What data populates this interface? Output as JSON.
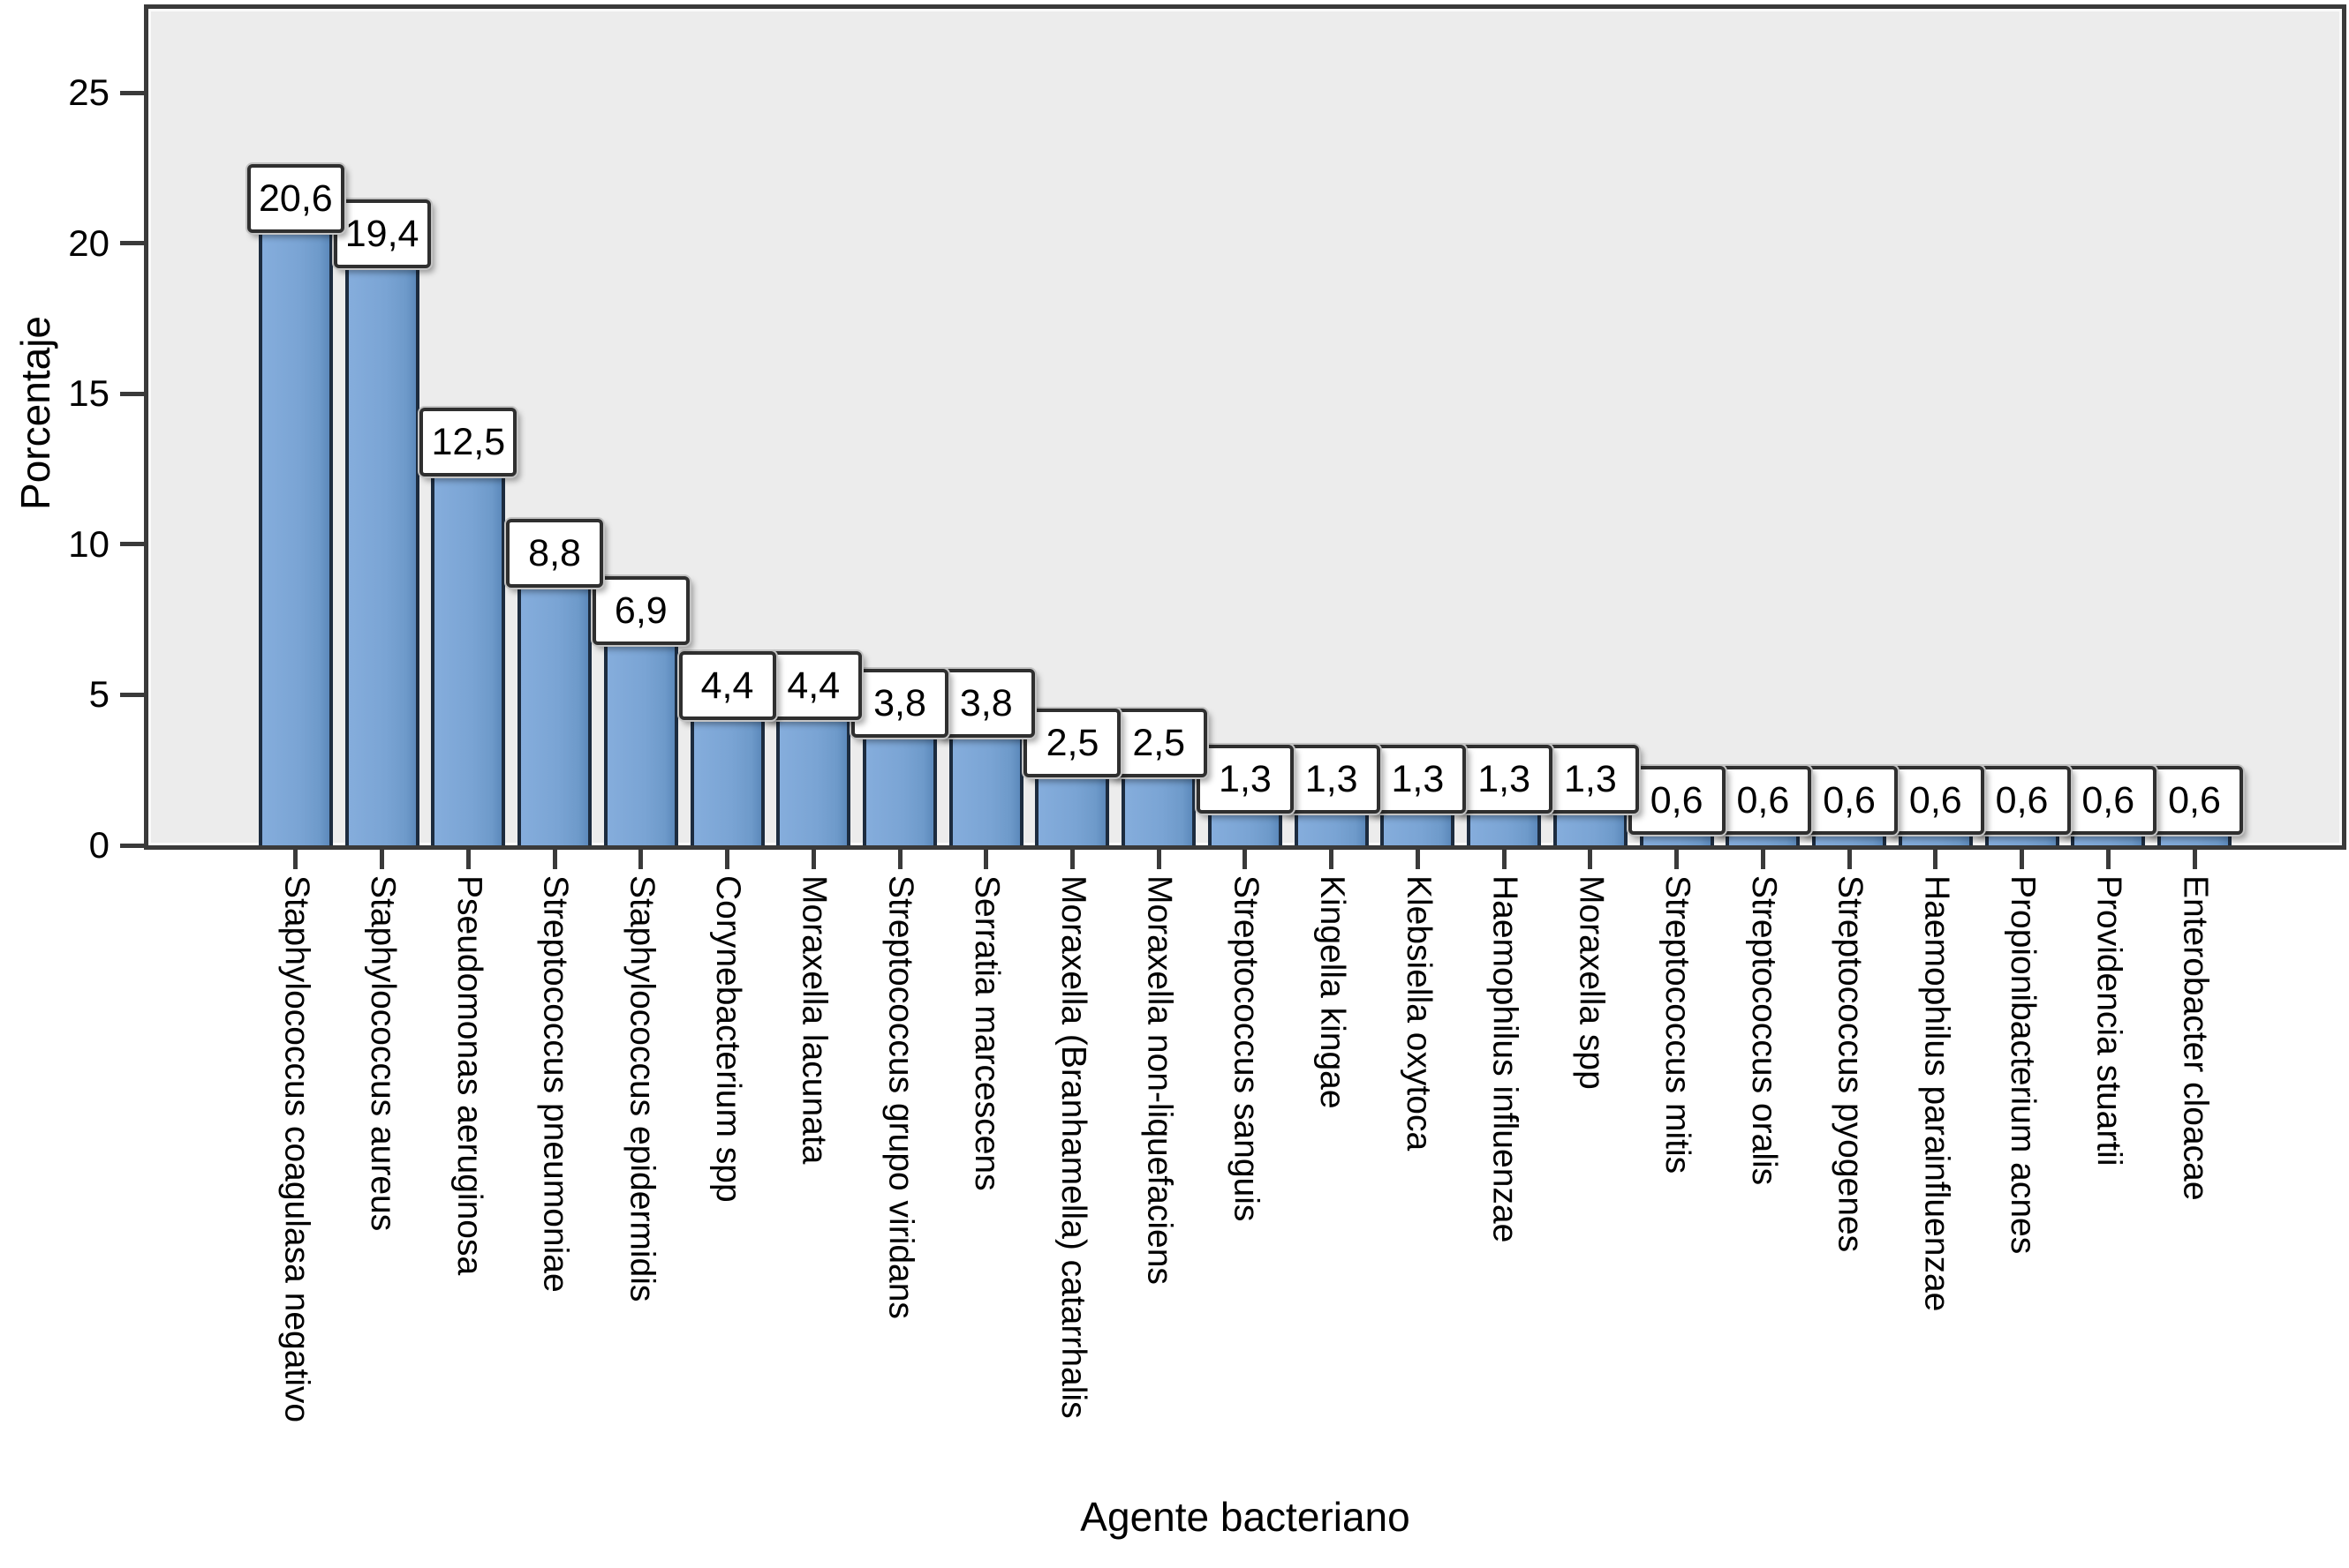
{
  "chart_data": {
    "type": "bar",
    "title": "",
    "xlabel": "Agente bacteriano",
    "ylabel": "Porcentaje",
    "categories": [
      "Staphylococcus coagulasa negativo",
      "Staphylococcus aureus",
      "Pseudomonas aeruginosa",
      "Streptococcus pneumoniae",
      "Staphylococcus epidermidis",
      "Corynebacterium spp",
      "Moraxella lacunata",
      "Streptococcus grupo viridans",
      "Serratia marcescens",
      "Moraxella (Branhamella) catarrhalis",
      "Moraxella non-liquefaciens",
      "Streptococcus sanguis",
      "Kingella kingae",
      "Klebsiella oxytoca",
      "Haemophilus influenzae",
      "Moraxella spp",
      "Streptococcus mitis",
      "Streptococcus oralis",
      "Streptococcus pyogenes",
      "Haemophilus parainfluenzae",
      "Propionibacterium acnes",
      "Providencia stuartii",
      "Enterobacter cloacae"
    ],
    "values": [
      20.6,
      19.4,
      12.5,
      8.8,
      6.9,
      4.4,
      4.4,
      3.8,
      3.8,
      2.5,
      2.5,
      1.3,
      1.3,
      1.3,
      1.3,
      1.3,
      0.6,
      0.6,
      0.6,
      0.6,
      0.6,
      0.6,
      0.6
    ],
    "value_labels": [
      "20,6",
      "19,4",
      "12,5",
      "8,8",
      "6,9",
      "4,4",
      "4,4",
      "3,8",
      "3,8",
      "2,5",
      "2,5",
      "1,3",
      "1,3",
      "1,3",
      "1,3",
      "1,3",
      "0,6",
      "0,6",
      "0,6",
      "0,6",
      "0,6",
      "0,6",
      "0,6"
    ],
    "y_ticks": [
      0,
      5,
      10,
      15,
      20,
      25
    ],
    "ylim": [
      0,
      27.8
    ],
    "grid": "off",
    "legend": "none",
    "colors": {
      "bar_fill": "#7aa4d4",
      "bar_border": "#1d2c3f",
      "plot_background": "#ececec",
      "frame": "#3a3a3a",
      "label_box_background": "#ffffff",
      "label_box_border": "#2f2f2f"
    }
  }
}
